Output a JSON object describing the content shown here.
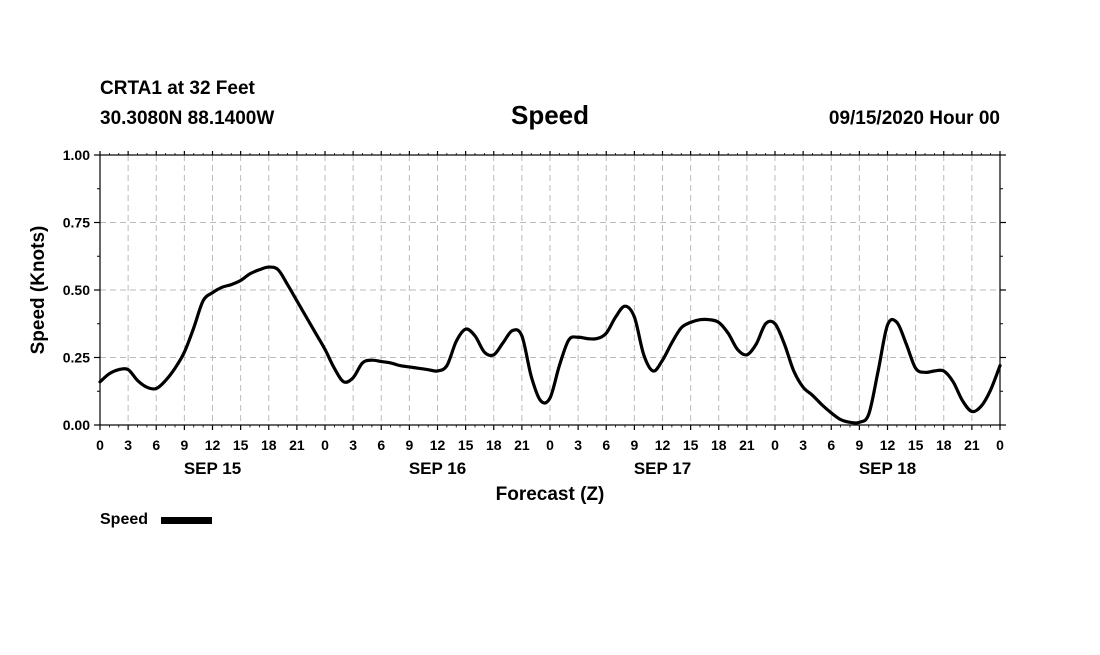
{
  "header": {
    "station": "CRTA1 at 32 Feet",
    "coords": "30.3080N 88.1400W",
    "timestamp": "09/15/2020 Hour 00"
  },
  "legend": {
    "label": "Speed",
    "position": "bottom-left"
  },
  "colors": {
    "line": "#000000",
    "grid": "#bbbbbb",
    "background": "#ffffff"
  },
  "chart_data": {
    "type": "line",
    "title": "Speed",
    "xlabel": "Forecast (Z)",
    "ylabel": "Speed (Knots)",
    "xlim": [
      0,
      96
    ],
    "ylim": [
      0,
      1
    ],
    "grid": true,
    "y_ticks": [
      0,
      0.25,
      0.5,
      0.75,
      1.0
    ],
    "y_tick_labels": [
      "0.00",
      "0.25",
      "0.50",
      "0.75",
      "1.00"
    ],
    "x_ticks": [
      0,
      3,
      6,
      9,
      12,
      15,
      18,
      21,
      24,
      27,
      30,
      33,
      36,
      39,
      42,
      45,
      48,
      51,
      54,
      57,
      60,
      63,
      66,
      69,
      72,
      75,
      78,
      81,
      84,
      87,
      90,
      93,
      96
    ],
    "x_tick_labels": [
      "0",
      "3",
      "6",
      "9",
      "12",
      "15",
      "18",
      "21",
      "0",
      "3",
      "6",
      "9",
      "12",
      "15",
      "18",
      "21",
      "0",
      "3",
      "6",
      "9",
      "12",
      "15",
      "18",
      "21",
      "0",
      "3",
      "6",
      "9",
      "12",
      "15",
      "18",
      "21",
      "0"
    ],
    "day_labels": [
      {
        "label": "SEP 15",
        "hour": 12
      },
      {
        "label": "SEP 16",
        "hour": 36
      },
      {
        "label": "SEP 17",
        "hour": 60
      },
      {
        "label": "SEP 18",
        "hour": 84
      }
    ],
    "series": [
      {
        "name": "Speed",
        "x": [
          0,
          1,
          2,
          3,
          4,
          5,
          6,
          7,
          8,
          9,
          10,
          11,
          12,
          13,
          14,
          15,
          16,
          17,
          18,
          19,
          20,
          21,
          22,
          23,
          24,
          25,
          26,
          27,
          28,
          29,
          30,
          31,
          32,
          33,
          34,
          35,
          36,
          37,
          38,
          39,
          40,
          41,
          42,
          43,
          44,
          45,
          46,
          47,
          48,
          49,
          50,
          51,
          52,
          53,
          54,
          55,
          56,
          57,
          58,
          59,
          60,
          61,
          62,
          63,
          64,
          65,
          66,
          67,
          68,
          69,
          70,
          71,
          72,
          73,
          74,
          75,
          76,
          77,
          78,
          79,
          80,
          81,
          82,
          83,
          84,
          85,
          86,
          87,
          88,
          89,
          90,
          91,
          92,
          93,
          94,
          95,
          96
        ],
        "values": [
          0.16,
          0.19,
          0.205,
          0.205,
          0.165,
          0.14,
          0.135,
          0.165,
          0.21,
          0.27,
          0.36,
          0.46,
          0.49,
          0.51,
          0.52,
          0.535,
          0.56,
          0.575,
          0.585,
          0.575,
          0.52,
          0.46,
          0.4,
          0.34,
          0.28,
          0.21,
          0.16,
          0.175,
          0.23,
          0.24,
          0.235,
          0.23,
          0.22,
          0.215,
          0.21,
          0.205,
          0.2,
          0.22,
          0.31,
          0.355,
          0.33,
          0.27,
          0.26,
          0.305,
          0.35,
          0.33,
          0.18,
          0.09,
          0.1,
          0.22,
          0.315,
          0.325,
          0.32,
          0.32,
          0.34,
          0.4,
          0.44,
          0.4,
          0.26,
          0.2,
          0.24,
          0.305,
          0.36,
          0.38,
          0.39,
          0.39,
          0.38,
          0.34,
          0.28,
          0.26,
          0.3,
          0.375,
          0.375,
          0.3,
          0.2,
          0.14,
          0.11,
          0.075,
          0.045,
          0.02,
          0.01,
          0.01,
          0.04,
          0.2,
          0.37,
          0.38,
          0.3,
          0.21,
          0.195,
          0.2,
          0.2,
          0.16,
          0.09,
          0.05,
          0.07,
          0.13,
          0.22
        ]
      }
    ]
  }
}
